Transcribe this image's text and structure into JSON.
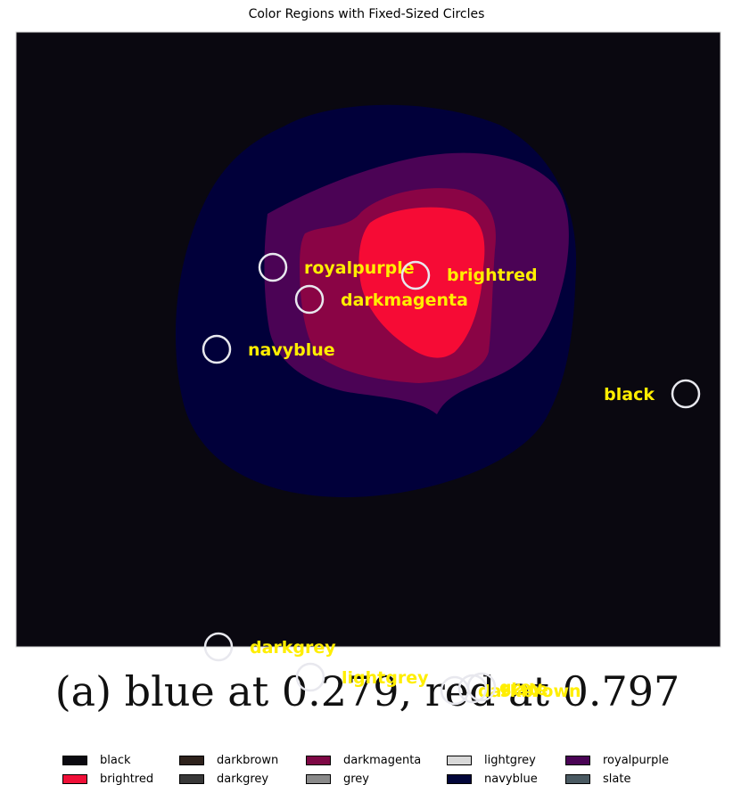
{
  "chart_data": {
    "type": "image-segmentation",
    "title": "Color Regions with Fixed-Sized Circles",
    "caption": "(a)  blue at 0.279, red at 0.797",
    "regions": [
      {
        "name": "black",
        "color": "#0a0810"
      },
      {
        "name": "navyblue",
        "color": "#01003a"
      },
      {
        "name": "royalpurple",
        "color": "#4b0355"
      },
      {
        "name": "darkmagenta",
        "color": "#8a0445"
      },
      {
        "name": "brightred",
        "color": "#f60b35"
      }
    ],
    "labels": [
      "black",
      "royalpurple",
      "brightred",
      "darkmagenta",
      "navyblue",
      "darkgrey",
      "lightgrey",
      "darkbrown",
      "grey",
      "slate"
    ],
    "legend": [
      {
        "name": "black",
        "color": "#0b0a10"
      },
      {
        "name": "brightred",
        "color": "#f01038"
      },
      {
        "name": "darkbrown",
        "color": "#2e221c"
      },
      {
        "name": "darkgrey",
        "color": "#383838"
      },
      {
        "name": "darkmagenta",
        "color": "#7e0845"
      },
      {
        "name": "grey",
        "color": "#8a8a8a"
      },
      {
        "name": "lightgrey",
        "color": "#d8d8d8"
      },
      {
        "name": "navyblue",
        "color": "#02063a"
      },
      {
        "name": "royalpurple",
        "color": "#4a0455"
      },
      {
        "name": "slate",
        "color": "#4a5a62"
      }
    ],
    "label_color": "#ffee00",
    "legend_placement": "bottom"
  }
}
